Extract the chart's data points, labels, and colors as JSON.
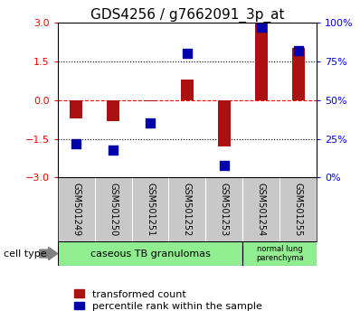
{
  "title": "GDS4256 / g7662091_3p_at",
  "samples": [
    "GSM501249",
    "GSM501250",
    "GSM501251",
    "GSM501252",
    "GSM501253",
    "GSM501254",
    "GSM501255"
  ],
  "red_values": [
    -0.7,
    -0.8,
    -0.05,
    0.8,
    -1.8,
    3.0,
    2.0
  ],
  "blue_pct": [
    22,
    18,
    35,
    80,
    8,
    97,
    82
  ],
  "ylim": [
    -3,
    3
  ],
  "right_ylim": [
    0,
    100
  ],
  "yticks_left": [
    -3,
    -1.5,
    0,
    1.5,
    3
  ],
  "yticks_right": [
    0,
    25,
    50,
    75,
    100
  ],
  "hlines": [
    -1.5,
    1.5
  ],
  "hline_zero": 0,
  "bar_color": "#AA1111",
  "dot_color": "#0000AA",
  "bar_width": 0.35,
  "dot_size": 50,
  "background_samples": "#C8C8C8",
  "cell_color": "#90EE90",
  "legend_red": "transformed count",
  "legend_blue": "percentile rank within the sample",
  "cell_type_label": "cell type",
  "fontsize_title": 11,
  "fontsize_ticks": 8,
  "fontsize_samples": 7,
  "fontsize_legend": 8,
  "fontsize_cell": 8
}
